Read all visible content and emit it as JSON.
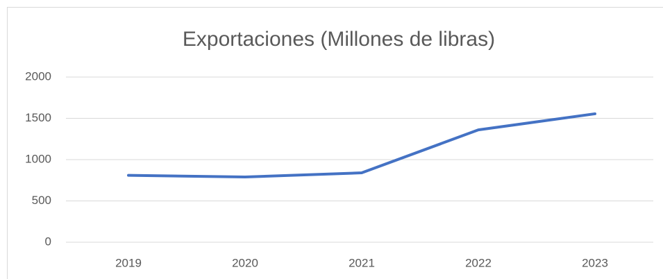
{
  "chart_data": {
    "type": "line",
    "title": "Exportaciones (Millones de libras)",
    "categories": [
      "2019",
      "2020",
      "2021",
      "2022",
      "2023"
    ],
    "series": [
      {
        "name": "Exportaciones",
        "color": "#4472c4",
        "values": [
          810,
          790,
          840,
          1360,
          1555
        ]
      }
    ],
    "ylim": [
      0,
      2000
    ],
    "yticks": [
      0,
      500,
      1000,
      1500,
      2000
    ],
    "grid": true
  }
}
